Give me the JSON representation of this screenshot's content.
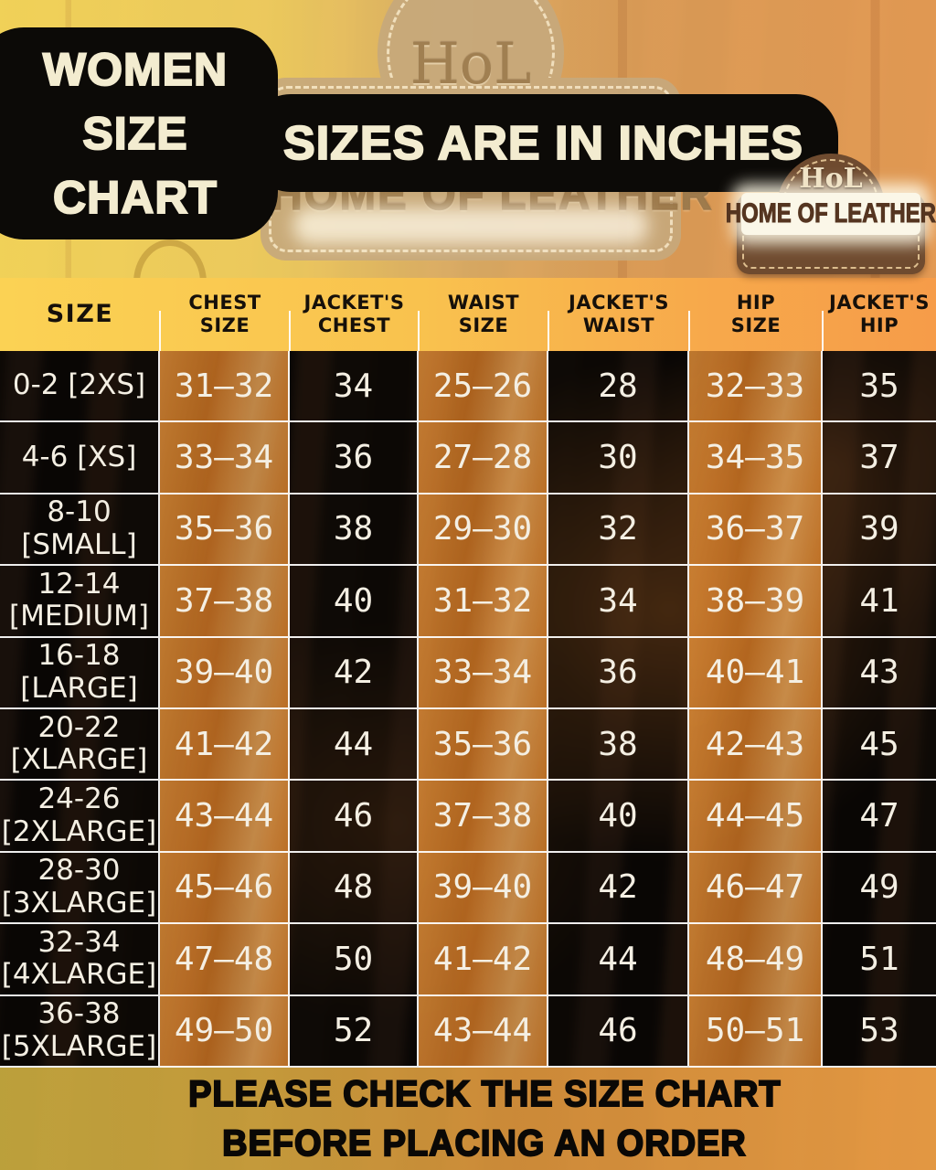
{
  "header": {
    "title_lines": [
      "WOMEN",
      "SIZE",
      "CHART"
    ],
    "banner": "SIZES ARE IN INCHES",
    "logo": {
      "monogram": "HoL",
      "name": "HOME OF LEATHER"
    },
    "background_sign": {
      "monogram": "HoL",
      "name": "HOME OF LEATHER"
    }
  },
  "table": {
    "headers": [
      "SIZE",
      "CHEST\nSIZE",
      "JACKET'S\nCHEST",
      "WAIST\nSIZE",
      "JACKET'S\nWAIST",
      "HIP\nSIZE",
      "JACKET'S\nHIP"
    ],
    "rows": [
      {
        "size": "0-2 [2XS]",
        "chest": "31–32",
        "jacket_chest": "34",
        "waist": "25–26",
        "jacket_waist": "28",
        "hip": "32–33",
        "jacket_hip": "35"
      },
      {
        "size": "4-6 [XS]",
        "chest": "33–34",
        "jacket_chest": "36",
        "waist": "27–28",
        "jacket_waist": "30",
        "hip": "34–35",
        "jacket_hip": "37"
      },
      {
        "size": "8-10\n[SMALL]",
        "chest": "35–36",
        "jacket_chest": "38",
        "waist": "29–30",
        "jacket_waist": "32",
        "hip": "36–37",
        "jacket_hip": "39"
      },
      {
        "size": "12-14\n[MEDIUM]",
        "chest": "37–38",
        "jacket_chest": "40",
        "waist": "31–32",
        "jacket_waist": "34",
        "hip": "38–39",
        "jacket_hip": "41"
      },
      {
        "size": "16-18\n[LARGE]",
        "chest": "39–40",
        "jacket_chest": "42",
        "waist": "33–34",
        "jacket_waist": "36",
        "hip": "40–41",
        "jacket_hip": "43"
      },
      {
        "size": "20-22\n[XLARGE]",
        "chest": "41–42",
        "jacket_chest": "44",
        "waist": "35–36",
        "jacket_waist": "38",
        "hip": "42–43",
        "jacket_hip": "45"
      },
      {
        "size": "24-26\n[2XLARGE]",
        "chest": "43–44",
        "jacket_chest": "46",
        "waist": "37–38",
        "jacket_waist": "40",
        "hip": "44–45",
        "jacket_hip": "47"
      },
      {
        "size": "28-30\n[3XLARGE]",
        "chest": "45–46",
        "jacket_chest": "48",
        "waist": "39–40",
        "jacket_waist": "42",
        "hip": "46–47",
        "jacket_hip": "49"
      },
      {
        "size": "32-34\n[4XLARGE]",
        "chest": "47–48",
        "jacket_chest": "50",
        "waist": "41–42",
        "jacket_waist": "44",
        "hip": "48–49",
        "jacket_hip": "51"
      },
      {
        "size": "36-38\n[5XLARGE]",
        "chest": "49–50",
        "jacket_chest": "52",
        "waist": "43–44",
        "jacket_waist": "46",
        "hip": "50–51",
        "jacket_hip": "53"
      }
    ]
  },
  "footer": {
    "line1": "PLEASE CHECK THE SIZE CHART",
    "line2": "BEFORE PLACING AN ORDER"
  },
  "colors": {
    "header_yellow": "#FBD254",
    "header_orange": "#F69C49",
    "orange_cell": "#C67A2C",
    "pill_black": "#0C0A07",
    "cream_text": "#F3ECD0",
    "badge_brown": "#6F4B2F",
    "badge_stitch": "#DCBD8E",
    "grid_line": "#FFFFFF"
  },
  "chart_data": {
    "type": "table",
    "title": "WOMEN SIZE CHART",
    "subtitle": "SIZES ARE IN INCHES",
    "units": "inches",
    "columns": [
      "SIZE",
      "CHEST SIZE",
      "JACKET'S CHEST",
      "WAIST SIZE",
      "JACKET'S WAIST",
      "HIP SIZE",
      "JACKET'S HIP"
    ],
    "rows": [
      [
        "0-2 [2XS]",
        "31-32",
        "34",
        "25-26",
        "28",
        "32-33",
        "35"
      ],
      [
        "4-6 [XS]",
        "33-34",
        "36",
        "27-28",
        "30",
        "34-35",
        "37"
      ],
      [
        "8-10 [SMALL]",
        "35-36",
        "38",
        "29-30",
        "32",
        "36-37",
        "39"
      ],
      [
        "12-14 [MEDIUM]",
        "37-38",
        "40",
        "31-32",
        "34",
        "38-39",
        "41"
      ],
      [
        "16-18 [LARGE]",
        "39-40",
        "42",
        "33-34",
        "36",
        "40-41",
        "43"
      ],
      [
        "20-22 [XLARGE]",
        "41-42",
        "44",
        "35-36",
        "38",
        "42-43",
        "45"
      ],
      [
        "24-26 [2XLARGE]",
        "43-44",
        "46",
        "37-38",
        "40",
        "44-45",
        "47"
      ],
      [
        "28-30 [3XLARGE]",
        "45-46",
        "48",
        "39-40",
        "42",
        "46-47",
        "49"
      ],
      [
        "32-34 [4XLARGE]",
        "47-48",
        "50",
        "41-42",
        "44",
        "48-49",
        "51"
      ],
      [
        "36-38 [5XLARGE]",
        "49-50",
        "52",
        "43-44",
        "46",
        "50-51",
        "53"
      ]
    ]
  }
}
